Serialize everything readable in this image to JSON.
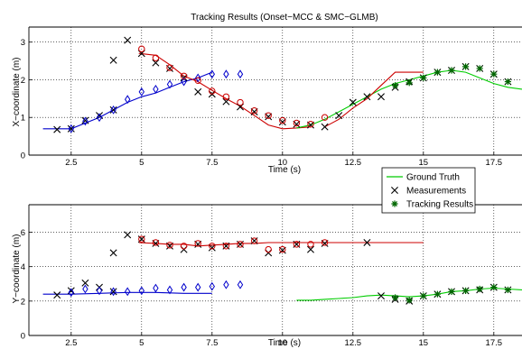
{
  "chart_data": {
    "type": "line",
    "title": "Tracking Results (Onset−MCC & SMC−GLMB)",
    "legend": {
      "placement": "center-right",
      "entries": [
        {
          "label": "Ground Truth",
          "color": "#00cc00",
          "marker": "line"
        },
        {
          "label": "Measurements",
          "color": "#000000",
          "marker": "x"
        },
        {
          "label": "Tracking Results",
          "color": "#006600",
          "marker": "star"
        }
      ]
    },
    "panels": [
      {
        "id": "x",
        "xlabel": "Time (s)",
        "ylabel": "X−coordinate (m)",
        "xlim": [
          1,
          18.5
        ],
        "ylim": [
          0,
          3.4
        ],
        "xticks": [
          "2.5",
          "5",
          "7.5",
          "10",
          "12.5",
          "15",
          "17.5"
        ],
        "yticks": [
          "0",
          "1",
          "2",
          "3"
        ],
        "grid": true,
        "ground_truth": [
          {
            "color": "#0000cc",
            "x": [
              1.5,
              2,
              2.5,
              3,
              3.5,
              4,
              4.5,
              5,
              5.5,
              6,
              6.5,
              7,
              7.5
            ],
            "y": [
              0.7,
              0.7,
              0.7,
              0.85,
              1.0,
              1.2,
              1.4,
              1.55,
              1.65,
              1.8,
              1.95,
              2.05,
              2.2
            ]
          },
          {
            "color": "#cc0000",
            "x": [
              4.9,
              5.5,
              6,
              6.5,
              7,
              7.5,
              8,
              8.5,
              9,
              9.5,
              10,
              10.5,
              11
            ],
            "y": [
              2.7,
              2.65,
              2.4,
              2.1,
              1.95,
              1.72,
              1.5,
              1.3,
              1.05,
              0.8,
              0.7,
              0.72,
              0.75
            ]
          },
          {
            "color": "#00cc00",
            "x": [
              10.5,
              11,
              11.5,
              12,
              12.5,
              13,
              13.5,
              14,
              14.5,
              15,
              15.5,
              16,
              16.5,
              17,
              17.5,
              18,
              18.5
            ],
            "y": [
              0.72,
              0.8,
              0.95,
              1.15,
              1.35,
              1.55,
              1.75,
              1.9,
              2.0,
              2.1,
              2.2,
              2.25,
              2.2,
              2.05,
              1.9,
              1.8,
              1.75
            ]
          },
          {
            "color": "#cc0000",
            "x": [
              11.5,
              12,
              12.5,
              13,
              13.5,
              14,
              14.5,
              15
            ],
            "y": [
              0.75,
              0.95,
              1.25,
              1.5,
              1.85,
              2.2,
              2.2,
              2.2
            ]
          }
        ],
        "measurements": {
          "x": [
            2,
            2.5,
            3,
            3.5,
            4,
            4,
            4.5,
            5,
            5.5,
            6,
            6.5,
            7,
            7.5,
            8,
            8.5,
            9,
            9.5,
            10,
            10.5,
            11,
            11.5,
            12,
            12.5,
            13,
            13.5,
            14,
            14.5,
            15,
            15.5,
            16,
            16.5,
            17,
            17.5,
            18
          ],
          "y": [
            0.68,
            0.7,
            0.92,
            1.05,
            1.2,
            2.52,
            3.05,
            2.7,
            2.45,
            2.3,
            2.05,
            1.68,
            1.62,
            1.42,
            1.28,
            1.15,
            1.02,
            0.88,
            0.82,
            0.8,
            0.75,
            1.05,
            1.4,
            1.55,
            1.55,
            1.8,
            1.95,
            2.05,
            2.2,
            2.25,
            2.35,
            2.3,
            2.15,
            1.95
          ]
        },
        "tracks": [
          {
            "color": "#0000cc",
            "marker": "diamond",
            "x": [
              2.5,
              3,
              3.5,
              4,
              4.5,
              5,
              5.5,
              6,
              6.5,
              7,
              7.5,
              8,
              8.5
            ],
            "y": [
              0.7,
              0.9,
              1.0,
              1.2,
              1.48,
              1.68,
              1.75,
              1.88,
              1.95,
              2.05,
              2.15,
              2.15,
              2.15
            ]
          },
          {
            "color": "#cc0000",
            "marker": "circle",
            "x": [
              5,
              5.5,
              6,
              6.5,
              7,
              7.5,
              8,
              8.5,
              9,
              9.5,
              10,
              10.5,
              11,
              11.5
            ],
            "y": [
              2.82,
              2.58,
              2.32,
              2.1,
              1.98,
              1.7,
              1.55,
              1.4,
              1.18,
              1.05,
              0.92,
              0.85,
              0.82,
              1.0
            ]
          },
          {
            "color": "#006600",
            "marker": "star",
            "x": [
              14,
              14.5,
              15,
              15.5,
              16,
              16.5,
              17,
              17.5,
              18
            ],
            "y": [
              1.85,
              1.92,
              2.05,
              2.2,
              2.25,
              2.35,
              2.3,
              2.15,
              1.95
            ]
          }
        ]
      },
      {
        "id": "y",
        "xlabel": "Time (s)",
        "ylabel": "Y−coordinate (m)",
        "xlim": [
          1,
          18.5
        ],
        "ylim": [
          0,
          7.6
        ],
        "xticks": [
          "2.5",
          "5",
          "7.5",
          "10",
          "12.5",
          "15",
          "17.5"
        ],
        "yticks": [
          "0",
          "2",
          "4",
          "6"
        ],
        "grid": true,
        "ground_truth": [
          {
            "color": "#0000cc",
            "x": [
              1.5,
              2.5,
              3.5,
              4.5,
              5.5,
              6.5,
              7.5
            ],
            "y": [
              2.4,
              2.4,
              2.45,
              2.5,
              2.5,
              2.45,
              2.45
            ]
          },
          {
            "color": "#cc0000",
            "x": [
              4.9,
              5.5,
              6,
              6.5,
              7,
              7.5,
              8,
              8.5,
              9,
              9.5,
              10,
              11,
              12,
              13,
              14,
              15
            ],
            "y": [
              5.4,
              5.35,
              5.3,
              5.3,
              5.2,
              5.25,
              5.3,
              5.35,
              5.35,
              5.4,
              5.4,
              5.4,
              5.4,
              5.4,
              5.4,
              5.4
            ]
          },
          {
            "color": "#00cc00",
            "x": [
              10.5,
              11,
              11.5,
              12,
              12.5,
              13,
              13.5,
              14,
              14.5,
              15,
              15.5,
              16,
              16.5,
              17,
              17.5,
              18,
              18.5
            ],
            "y": [
              2.05,
              2.05,
              2.1,
              2.15,
              2.2,
              2.3,
              2.35,
              2.3,
              2.25,
              2.3,
              2.4,
              2.55,
              2.6,
              2.7,
              2.75,
              2.7,
              2.65
            ]
          }
        ],
        "measurements": {
          "x": [
            2,
            2.5,
            3,
            3.5,
            4,
            4,
            4.5,
            5,
            5.5,
            6,
            6.5,
            7,
            7.5,
            8,
            8.5,
            9,
            9.5,
            10,
            10.5,
            11,
            11.5,
            13,
            13.5,
            14,
            14.5,
            15,
            15.5,
            16,
            16.5,
            17,
            17.5,
            18
          ],
          "y": [
            2.35,
            2.6,
            3.05,
            2.8,
            2.55,
            4.8,
            5.85,
            5.6,
            5.35,
            5.2,
            5.0,
            5.3,
            5.1,
            5.2,
            5.3,
            5.5,
            4.8,
            4.95,
            5.3,
            5.0,
            5.35,
            5.4,
            2.3,
            2.1,
            2.0,
            2.3,
            2.4,
            2.55,
            2.6,
            2.65,
            2.8,
            2.65
          ]
        },
        "tracks": [
          {
            "color": "#0000cc",
            "marker": "diamond",
            "x": [
              2.5,
              3,
              3.5,
              4,
              4.5,
              5,
              5.5,
              6,
              6.5,
              7,
              7.5,
              8,
              8.5
            ],
            "y": [
              2.5,
              2.7,
              2.6,
              2.55,
              2.55,
              2.6,
              2.75,
              2.65,
              2.8,
              2.8,
              2.85,
              2.95,
              2.95
            ]
          },
          {
            "color": "#cc0000",
            "marker": "circle",
            "x": [
              5,
              5.5,
              6,
              6.5,
              7,
              7.5,
              8,
              8.5,
              9,
              9.5,
              10,
              10.5,
              11,
              11.5
            ],
            "y": [
              5.6,
              5.4,
              5.25,
              5.2,
              5.35,
              5.2,
              5.2,
              5.3,
              5.5,
              5.0,
              5.0,
              5.3,
              5.3,
              5.4
            ]
          },
          {
            "color": "#006600",
            "marker": "star",
            "x": [
              14,
              14.5,
              15,
              15.5,
              16,
              16.5,
              17,
              17.5,
              18
            ],
            "y": [
              2.2,
              2.05,
              2.3,
              2.4,
              2.55,
              2.6,
              2.7,
              2.8,
              2.65
            ]
          }
        ]
      }
    ]
  }
}
